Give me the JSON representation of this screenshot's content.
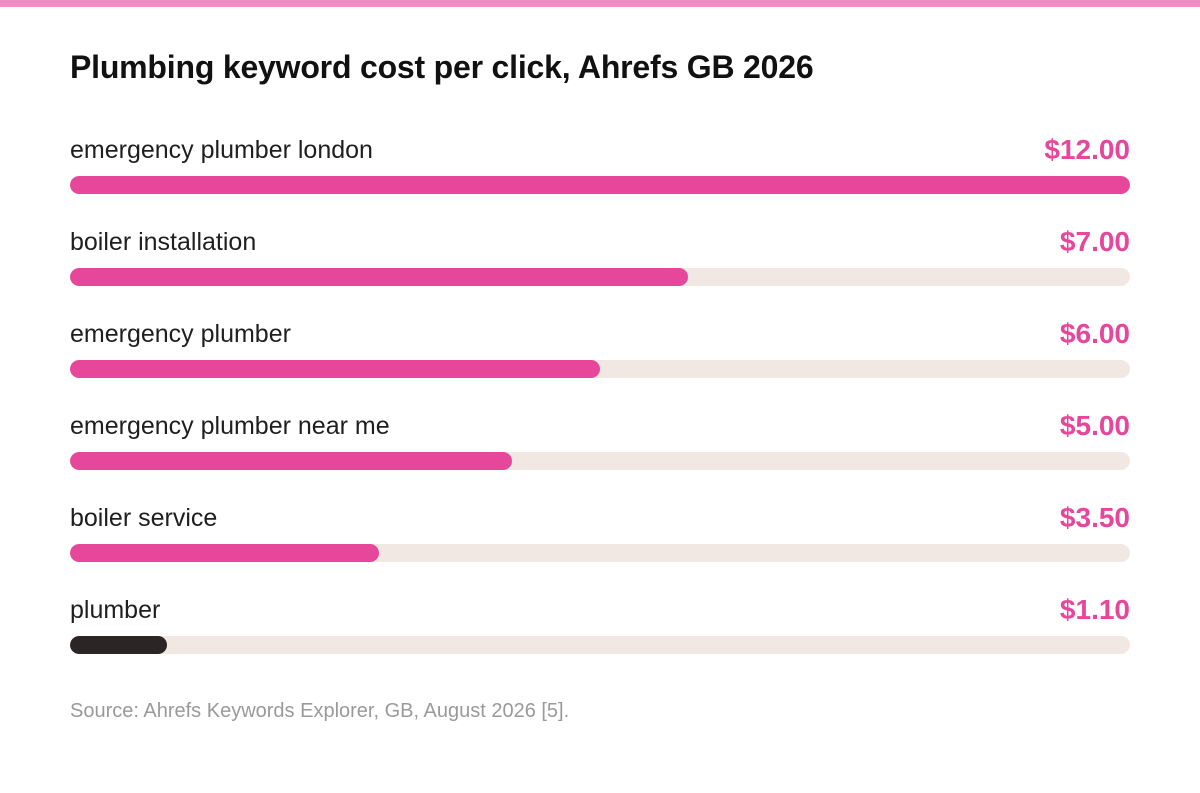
{
  "colors": {
    "accent": "#e6479b",
    "dark_bar": "#2b2525",
    "track": "#f1e8e3",
    "top_strip": "#f48cc4",
    "source_text": "#9a9a9a"
  },
  "chart_data": {
    "type": "bar",
    "orientation": "horizontal",
    "title": "Plumbing keyword cost per click, Ahrefs GB 2026",
    "categories": [
      "emergency plumber london",
      "boiler installation",
      "emergency plumber",
      "emergency plumber near me",
      "boiler service",
      "plumber"
    ],
    "values": [
      12.0,
      7.0,
      6.0,
      5.0,
      3.5,
      1.1
    ],
    "value_labels": [
      "$12.00",
      "$7.00",
      "$6.00",
      "$5.00",
      "$3.50",
      "$1.10"
    ],
    "highlight_index": 5,
    "xlim": [
      0,
      12
    ],
    "grid": false,
    "source": "Source: Ahrefs Keywords Explorer, GB, August 2026 [5]."
  }
}
